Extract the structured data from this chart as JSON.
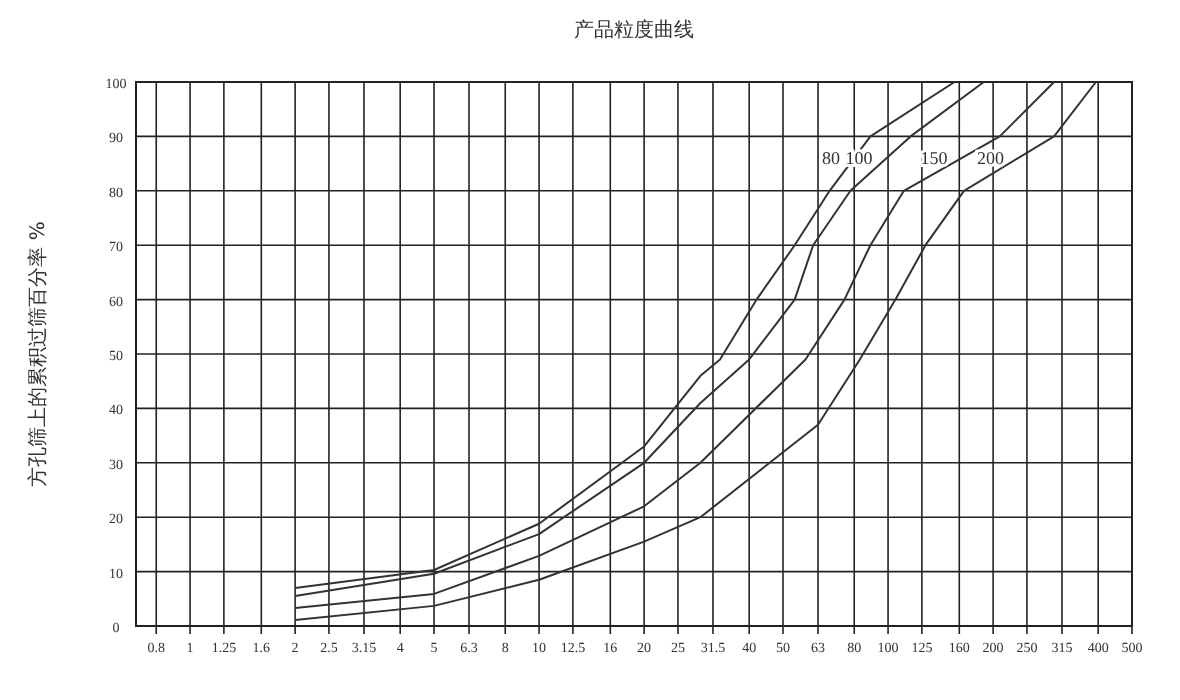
{
  "chart_data": {
    "type": "line",
    "title": "产品粒度曲线",
    "ylabel": "方孔筛上的累积过筛百分率 %",
    "log": "x",
    "grid": true,
    "marker": "none",
    "line_style": "solid",
    "xlim": [
      0.7,
      500
    ],
    "ylim": [
      0,
      100
    ],
    "xticks": [
      0.8,
      1,
      1.25,
      1.6,
      2,
      2.5,
      3.15,
      4,
      5,
      6.3,
      8,
      10,
      12.5,
      16,
      20,
      25,
      31.5,
      40,
      50,
      63,
      80,
      100,
      125,
      160,
      200,
      250,
      315,
      400,
      500
    ],
    "yticks": [
      0,
      10,
      20,
      30,
      40,
      50,
      60,
      70,
      80,
      90,
      100
    ],
    "series": [
      {
        "name": "80",
        "color": "#333333",
        "x": [
          2,
          5,
          10,
          20,
          29,
          33,
          42,
          54,
          68,
          89,
          155
        ],
        "values": [
          7,
          10.3,
          18.8,
          33,
          46,
          49,
          60,
          70,
          80,
          90,
          100
        ]
      },
      {
        "name": "100",
        "color": "#333333",
        "x": [
          2,
          5,
          10,
          20,
          29,
          40,
          54,
          61,
          78,
          116,
          188
        ],
        "values": [
          5.5,
          9.6,
          16.9,
          30,
          41,
          49,
          60,
          70,
          80,
          90,
          100
        ]
      },
      {
        "name": "150",
        "color": "#333333",
        "x": [
          2,
          5,
          10,
          20,
          29,
          58,
          75,
          89,
          111,
          209,
          299
        ],
        "values": [
          3.3,
          5.9,
          12.9,
          22,
          30,
          49,
          60,
          70,
          80,
          90,
          100
        ]
      },
      {
        "name": "200",
        "color": "#333333",
        "x": [
          2,
          5,
          10,
          20,
          29,
          63,
          83,
          105,
          128,
          165,
          299,
          394
        ],
        "values": [
          1.1,
          3.7,
          8.5,
          15.5,
          20,
          37,
          49,
          60,
          70,
          80,
          90,
          100
        ]
      }
    ]
  }
}
